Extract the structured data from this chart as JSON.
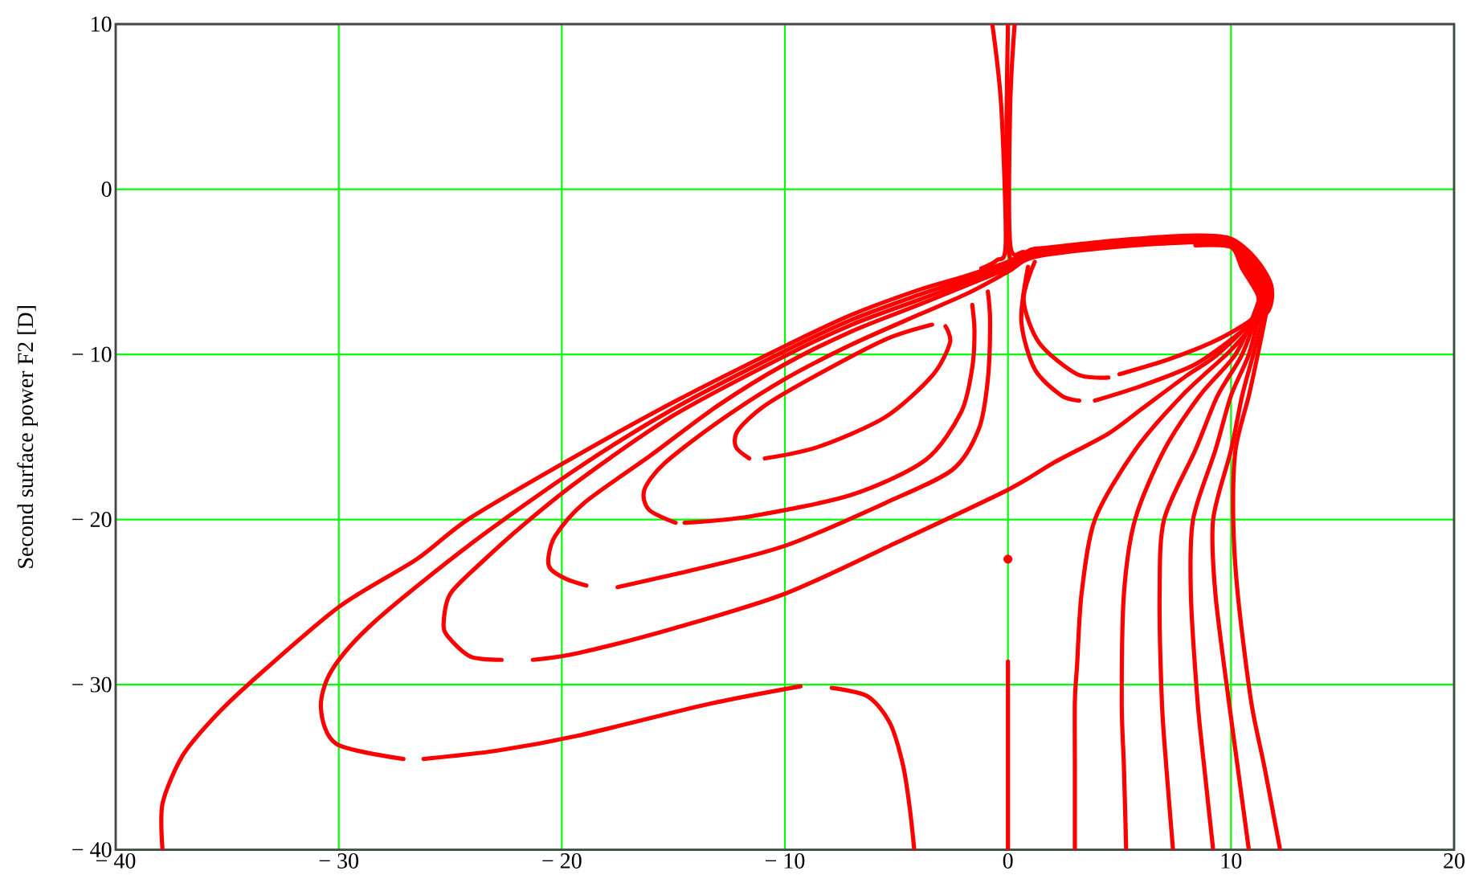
{
  "chart_data": {
    "type": "line",
    "ylabel": "Second surface power F2 [D]",
    "xlim": [
      -40,
      20
    ],
    "ylim": [
      -40,
      10
    ],
    "xticks": [
      {
        "value": -40,
        "label": "− 40"
      },
      {
        "value": -30,
        "label": "− 30"
      },
      {
        "value": -20,
        "label": "− 20"
      },
      {
        "value": -10,
        "label": "− 10"
      },
      0,
      10,
      20
    ],
    "yticks": [
      {
        "value": -40,
        "label": "− 40"
      },
      {
        "value": -30,
        "label": "− 30"
      },
      {
        "value": -20,
        "label": "− 20"
      },
      {
        "value": -10,
        "label": "− 10"
      },
      0,
      10
    ],
    "grid": true,
    "line_style": "solid",
    "series": [
      {
        "color": "#ff0000",
        "x": [
          0,
          0,
          1.2,
          4.8,
          8.4,
          10,
          11.1,
          11.8,
          11.7,
          10.7,
          9.8,
          7.8,
          5.7,
          3.9,
          3.3,
          3.1,
          3.0,
          3.0,
          3.0
        ],
        "values": [
          10,
          -3.5,
          -3.6,
          -3.1,
          -2.8,
          -3.0,
          -4.2,
          -5.8,
          -7.3,
          -8.7,
          -10,
          -12.5,
          -15.8,
          -20,
          -24.5,
          -28.8,
          -31,
          -35,
          -40
        ]
      },
      {
        "color": "#ff0000",
        "x": [
          -0.7,
          -0.3,
          -0.1,
          -0.5,
          -1.2
        ],
        "values": [
          10,
          5,
          -3.3,
          -4.3,
          -4.8
        ]
      },
      {
        "color": "#ff0000",
        "x": [
          0.3,
          0.1,
          0.1,
          0.7,
          1.4
        ],
        "values": [
          10,
          5,
          -3.3,
          -3.8,
          -3.9
        ]
      },
      {
        "color": "#ff0000",
        "x": [
          -37.9,
          -37.9,
          -37.0,
          -35.6,
          -33.9,
          -30.0,
          -26.5,
          -24.1,
          -19.3,
          -15,
          -10,
          -7,
          -4,
          -2,
          0,
          1.2,
          4.8,
          8.4,
          10,
          11.0,
          11.7,
          11.6,
          11.2,
          10.8,
          10.2,
          10.1,
          10.3,
          10.9,
          11.5,
          12.2
        ],
        "values": [
          -40,
          -37.2,
          -34.3,
          -32.0,
          -29.8,
          -25.3,
          -22.4,
          -19.9,
          -16.1,
          -12.9,
          -9.5,
          -7.6,
          -6.1,
          -5.3,
          -4.4,
          -3.7,
          -3.2,
          -2.9,
          -3.1,
          -4.3,
          -5.9,
          -7.3,
          -10,
          -12.5,
          -15.8,
          -20,
          -24.5,
          -31,
          -35,
          -40
        ]
      },
      {
        "color": "#ff0000",
        "x": [
          -4.2,
          -4.4,
          -4.7,
          -5.3,
          -6.3,
          -7.9
        ],
        "values": [
          -40,
          -37.5,
          -34.9,
          -32.3,
          -30.7,
          -30.2
        ]
      },
      {
        "color": "#ff0000",
        "x": [
          -9.3,
          -13.5,
          -19.3,
          -22.9,
          -26.2
        ],
        "values": [
          -30.1,
          -31.2,
          -33.1,
          -34.0,
          -34.5
        ]
      },
      {
        "color": "#ff0000",
        "x": [
          -27.1,
          -30.1,
          -30.8,
          -30.3,
          -28.4,
          -24.1,
          -19.3,
          -15,
          -10,
          -7,
          -4,
          -2,
          0,
          1.2,
          4.8,
          8.4,
          10,
          10.9,
          11.6,
          11.5,
          11.0,
          10.5,
          10.0,
          9.2,
          9.3,
          9.9,
          10.3,
          10.8
        ],
        "values": [
          -34.5,
          -33.6,
          -31.4,
          -29.1,
          -26.2,
          -21.5,
          -16.9,
          -13.3,
          -9.8,
          -7.9,
          -6.4,
          -5.5,
          -4.5,
          -3.8,
          -3.3,
          -3.0,
          -3.2,
          -4.4,
          -6.0,
          -7.3,
          -10,
          -12.5,
          -15.8,
          -20,
          -24.5,
          -31,
          -35,
          -40
        ]
      },
      {
        "color": "#ff0000",
        "x": [
          -22.7,
          -24.1,
          -25.1,
          -25.3,
          -25.0,
          -23.6,
          -21.7,
          -19.3,
          -15,
          -10,
          -7,
          -4,
          -2,
          0,
          1.2,
          4.8,
          8.4,
          10,
          10.8,
          11.5,
          11.4,
          9.4,
          8.0,
          6.0,
          4.5,
          2.0,
          0,
          -5,
          -10,
          -15,
          -19.3,
          -21.3
        ],
        "values": [
          -28.5,
          -28.3,
          -27.1,
          -26.3,
          -24.5,
          -22.6,
          -20.3,
          -17.7,
          -13.7,
          -10.1,
          -8.2,
          -6.7,
          -5.7,
          -4.7,
          -3.9,
          -3.4,
          -3.1,
          -3.3,
          -4.5,
          -6.1,
          -7.3,
          -10,
          -11.3,
          -13.3,
          -14.8,
          -16.6,
          -18.2,
          -21.4,
          -24.5,
          -26.6,
          -28.1,
          -28.5
        ]
      },
      {
        "color": "#ff0000",
        "x": [
          -0.9,
          -0.8,
          -0.9,
          -1.3,
          -2.5,
          -5.5,
          -9.8,
          -13.0,
          -17.5
        ],
        "values": [
          -6.2,
          -8.0,
          -11.5,
          -14.5,
          -17.0,
          -19.0,
          -21.5,
          -22.7,
          -24.1
        ]
      },
      {
        "color": "#ff0000",
        "x": [
          -18.9,
          -19.8,
          -20.5,
          -20.6,
          -20.3,
          -19,
          -16,
          -13,
          -10,
          -7,
          -4,
          -2,
          0,
          1.2,
          4.8,
          8.4,
          10,
          10.7,
          11.4,
          11.3,
          10.8,
          10.0,
          9.3,
          8.3,
          8.2,
          8.5,
          8.8,
          9.2
        ],
        "values": [
          -24.0,
          -23.6,
          -23.0,
          -22.3,
          -21,
          -19.0,
          -16.1,
          -13.1,
          -10.6,
          -8.6,
          -7.0,
          -5.9,
          -4.8,
          -4.0,
          -3.4,
          -3.1,
          -3.3,
          -4.6,
          -6.2,
          -7.3,
          -10,
          -12.5,
          -15.8,
          -20,
          -24.5,
          -31,
          -35,
          -40
        ]
      },
      {
        "color": "#ff0000",
        "x": [
          -1.6,
          -1.5,
          -1.6,
          -2.1,
          -3.7,
          -7.0,
          -11.5,
          -14.5
        ],
        "values": [
          -7.0,
          -8.6,
          -10.8,
          -13.5,
          -16.4,
          -18.5,
          -19.8,
          -20.2
        ]
      },
      {
        "color": "#ff0000",
        "x": [
          -14.9,
          -16.1,
          -16.3,
          -15.4,
          -13.0,
          -10.0,
          -7.0,
          -4.0,
          -1.8,
          0,
          1.2,
          4.8,
          8.4,
          10,
          10.6,
          11.3,
          11.2,
          10.5,
          9.4,
          8.4,
          7.0,
          6.8,
          6.9,
          7.1,
          7.4
        ],
        "values": [
          -20.2,
          -19.4,
          -18.2,
          -16.6,
          -14.1,
          -11.5,
          -9.4,
          -7.6,
          -6.3,
          -5.0,
          -4.1,
          -3.5,
          -3.2,
          -3.4,
          -4.7,
          -6.3,
          -7.3,
          -10,
          -12.5,
          -15.8,
          -20,
          -24.5,
          -31,
          -35,
          -40
        ]
      },
      {
        "color": "#ff0000",
        "x": [
          -2.8,
          -2.6,
          -3.4,
          -5.5,
          -8.5,
          -10.9
        ],
        "values": [
          -8.3,
          -9.3,
          -11.3,
          -13.8,
          -15.6,
          -16.3
        ]
      },
      {
        "color": "#ff0000",
        "x": [
          -11.6,
          -12.2,
          -12.1,
          -10.9,
          -8.5,
          -5.5,
          -3.4
        ],
        "values": [
          -16.3,
          -15.6,
          -14.6,
          -13.1,
          -11.2,
          -9.1,
          -8.2
        ]
      },
      {
        "color": "#ff0000",
        "x": [
          8.4,
          10,
          10.5,
          11.2,
          11.1,
          10.2,
          8.6,
          7.0,
          5.7,
          5.2,
          5.1,
          5.2,
          5.3
        ],
        "values": [
          -3.4,
          -3.5,
          -4.8,
          -6.4,
          -7.3,
          -10,
          -12.5,
          -15.8,
          -20,
          -24.5,
          -31,
          -35,
          -40
        ]
      },
      {
        "color": "#ff0000",
        "x": [
          1.2,
          0.7,
          1.4,
          3.1,
          4.5
        ],
        "values": [
          -4.4,
          -6.7,
          -9.3,
          -11.2,
          -11.4
        ]
      },
      {
        "color": "#ff0000",
        "x": [
          5.0,
          7.2,
          9.1,
          10.6,
          11.4
        ],
        "values": [
          -11.2,
          -10.3,
          -9.3,
          -8.2,
          -7.3
        ]
      },
      {
        "color": "#ff0000",
        "x": [
          0.9,
          0.6,
          1.2,
          2.4,
          3.2
        ],
        "values": [
          -4.7,
          -8.0,
          -10.9,
          -12.5,
          -12.8
        ]
      },
      {
        "color": "#ff0000",
        "x": [
          3.9,
          6.0,
          8.4,
          10.3,
          11.3
        ],
        "values": [
          -12.8,
          -11.9,
          -10.6,
          -8.8,
          -7.6
        ]
      },
      {
        "color": "#ff0000",
        "x": [
          0,
          0
        ],
        "values": [
          -28.6,
          -40
        ]
      },
      {
        "type": "scatter",
        "marker": "circle",
        "color": "#ff0000",
        "x": [
          0
        ],
        "values": [
          -22.4
        ]
      }
    ]
  }
}
